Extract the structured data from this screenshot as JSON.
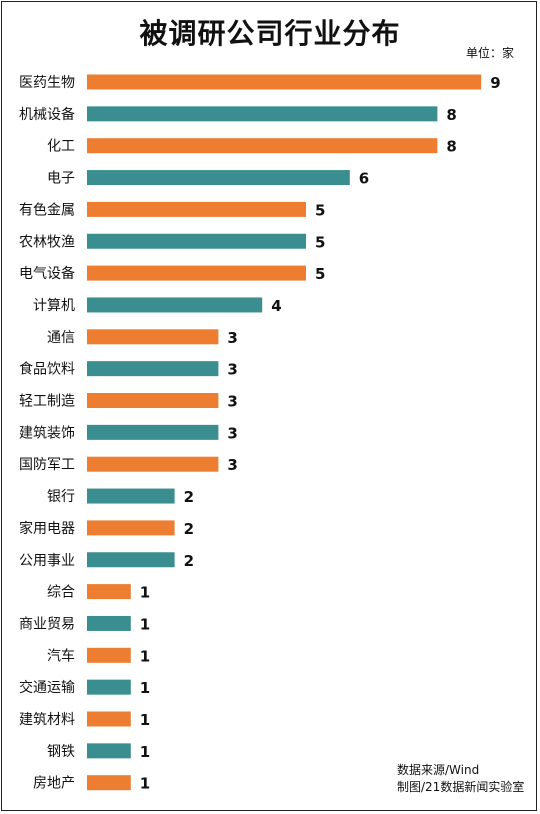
{
  "header": {
    "title": "被调研公司行业分布",
    "unit": "单位：家"
  },
  "footer": {
    "source": "数据来源/Wind",
    "credit": "制图/21数据新闻实验室"
  },
  "colors": {
    "orange": "#ED7D31",
    "teal": "#3B8E8F",
    "text": "#111111"
  },
  "chart_data": {
    "type": "bar",
    "orientation": "horizontal",
    "title": "被调研公司行业分布",
    "unit": "单位：家",
    "categories": [
      "医药生物",
      "机械设备",
      "化工",
      "电子",
      "有色金属",
      "农林牧渔",
      "电气设备",
      "计算机",
      "通信",
      "食品饮料",
      "轻工制造",
      "建筑装饰",
      "国防军工",
      "银行",
      "家用电器",
      "公用事业",
      "综合",
      "商业贸易",
      "汽车",
      "交通运输",
      "建筑材料",
      "钢铁",
      "房地产"
    ],
    "values": [
      9,
      8,
      8,
      6,
      5,
      5,
      5,
      4,
      3,
      3,
      3,
      3,
      3,
      2,
      2,
      2,
      1,
      1,
      1,
      1,
      1,
      1,
      1
    ],
    "bar_colors": [
      "#ED7D31",
      "#3B8E8F",
      "#ED7D31",
      "#3B8E8F",
      "#ED7D31",
      "#3B8E8F",
      "#ED7D31",
      "#3B8E8F",
      "#ED7D31",
      "#3B8E8F",
      "#ED7D31",
      "#3B8E8F",
      "#ED7D31",
      "#3B8E8F",
      "#ED7D31",
      "#3B8E8F",
      "#ED7D31",
      "#3B8E8F",
      "#ED7D31",
      "#3B8E8F",
      "#ED7D31",
      "#3B8E8F",
      "#ED7D31"
    ],
    "xlim": [
      0,
      9
    ],
    "grid": false,
    "legend": "none"
  }
}
